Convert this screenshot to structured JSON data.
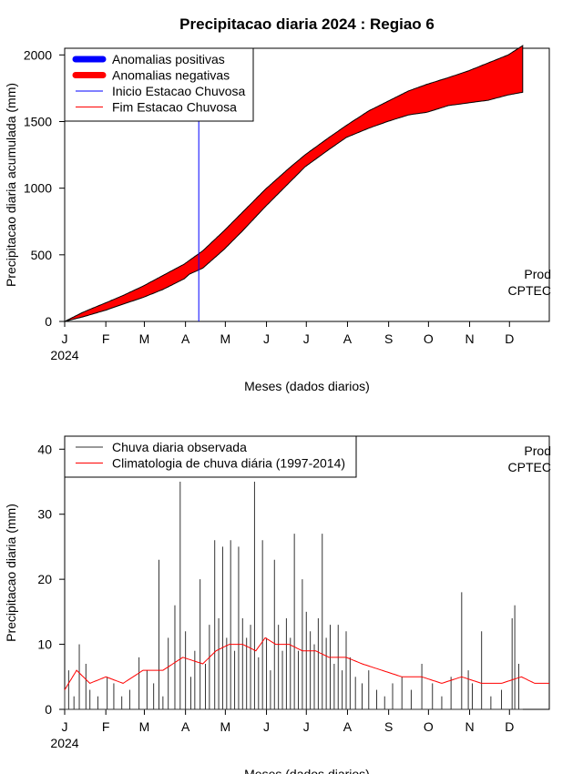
{
  "title": "Precipitacao diaria 2024 : Regiao 6",
  "chart_data": [
    {
      "type": "area",
      "ylabel": "Precipitacao diaria acumulada (mm)",
      "xlabel": "Meses (dados diarios)",
      "year_label": "2024",
      "month_labels": [
        "J",
        "F",
        "M",
        "A",
        "M",
        "J",
        "J",
        "A",
        "S",
        "O",
        "N",
        "D"
      ],
      "xlim": [
        1,
        366
      ],
      "ylim": [
        0,
        2050
      ],
      "y_ticks": [
        0,
        500,
        1000,
        1500,
        2000
      ],
      "legend_position": "top-left",
      "legend": [
        {
          "label": "Anomalias positivas",
          "color": "#0000ff",
          "style": "thick"
        },
        {
          "label": "Anomalias negativas",
          "color": "#ff0000",
          "style": "thick"
        },
        {
          "label": "Inicio Estacao Chuvosa",
          "color": "#0000ff",
          "style": "thin"
        },
        {
          "label": "Fim Estacao Chuvosa",
          "color": "#ff0000",
          "style": "thin"
        }
      ],
      "notes": [
        "Prod",
        "CPTEC"
      ],
      "fill_color": "#ff0000",
      "rainy_season_start_day": 102,
      "rainy_season_start_label": "Inicio Estacao Chuvosa",
      "climatology_cumulative": {
        "day": [
          1,
          15,
          32,
          45,
          60,
          75,
          91,
          105,
          121,
          135,
          152,
          170,
          182,
          200,
          213,
          230,
          244,
          260,
          274,
          290,
          305,
          320,
          335,
          346
        ],
        "value": [
          0,
          70,
          140,
          195,
          265,
          345,
          430,
          530,
          680,
          820,
          990,
          1150,
          1250,
          1380,
          1470,
          1580,
          1650,
          1730,
          1780,
          1830,
          1880,
          1940,
          2000,
          2070
        ]
      },
      "observed_cumulative": {
        "day": [
          1,
          15,
          32,
          45,
          60,
          75,
          91,
          95,
          105,
          121,
          135,
          152,
          170,
          182,
          200,
          213,
          230,
          244,
          260,
          274,
          290,
          305,
          320,
          335,
          346
        ],
        "value": [
          0,
          35,
          85,
          130,
          180,
          240,
          320,
          355,
          400,
          540,
          680,
          860,
          1040,
          1160,
          1290,
          1380,
          1450,
          1500,
          1550,
          1570,
          1620,
          1640,
          1660,
          1700,
          1720
        ]
      }
    },
    {
      "type": "bar",
      "ylabel": "Precipitacao diaria (mm)",
      "xlabel": "Meses (dados diarios)",
      "year_label": "2024",
      "month_labels": [
        "J",
        "F",
        "M",
        "A",
        "M",
        "J",
        "J",
        "A",
        "S",
        "O",
        "N",
        "D"
      ],
      "xlim": [
        1,
        366
      ],
      "ylim": [
        0,
        42
      ],
      "y_ticks": [
        0,
        10,
        20,
        30,
        40
      ],
      "legend_position": "top-left",
      "legend": [
        {
          "label": "Chuva diaria observada",
          "color": "#333333"
        },
        {
          "label": "Climatologia de chuva diária (1997-2014)",
          "color": "#ff0000"
        }
      ],
      "notes": [
        "Prod",
        "CPTEC"
      ],
      "daily_observed": {
        "day": [
          1,
          4,
          8,
          12,
          17,
          20,
          26,
          33,
          38,
          44,
          50,
          57,
          63,
          68,
          72,
          75,
          79,
          84,
          88,
          92,
          96,
          99,
          103,
          107,
          110,
          114,
          117,
          120,
          123,
          126,
          129,
          132,
          135,
          138,
          141,
          144,
          147,
          150,
          153,
          156,
          159,
          162,
          165,
          168,
          171,
          174,
          177,
          180,
          183,
          186,
          189,
          192,
          195,
          198,
          201,
          204,
          207,
          210,
          213,
          216,
          220,
          225,
          230,
          236,
          242,
          248,
          255,
          262,
          270,
          278,
          285,
          292,
          300,
          305,
          308,
          315,
          322,
          330,
          338,
          340,
          343
        ],
        "value": [
          3,
          6,
          2,
          10,
          7,
          3,
          2,
          5,
          4,
          2,
          3,
          8,
          6,
          4,
          23,
          2,
          11,
          16,
          35,
          12,
          5,
          9,
          20,
          7,
          13,
          26,
          14,
          25,
          11,
          26,
          9,
          25,
          14,
          11,
          13,
          35,
          8,
          26,
          11,
          6,
          23,
          13,
          9,
          14,
          11,
          27,
          9,
          20,
          15,
          12,
          10,
          14,
          27,
          11,
          13,
          7,
          13,
          6,
          12,
          8,
          5,
          4,
          6,
          3,
          2,
          4,
          5,
          3,
          7,
          4,
          2,
          5,
          18,
          6,
          4,
          12,
          2,
          3,
          14,
          16,
          7
        ]
      },
      "climatology": {
        "day": [
          1,
          10,
          20,
          32,
          45,
          60,
          75,
          90,
          105,
          115,
          125,
          135,
          145,
          152,
          160,
          170,
          180,
          190,
          200,
          213,
          225,
          240,
          255,
          270,
          285,
          300,
          315,
          330,
          345,
          355,
          366
        ],
        "value": [
          3,
          6,
          4,
          5,
          4,
          6,
          6,
          8,
          7,
          9,
          10,
          10,
          9,
          11,
          10,
          10,
          9,
          9,
          8,
          8,
          7,
          6,
          5,
          5,
          4,
          5,
          4,
          4,
          5,
          4,
          4
        ]
      }
    }
  ]
}
